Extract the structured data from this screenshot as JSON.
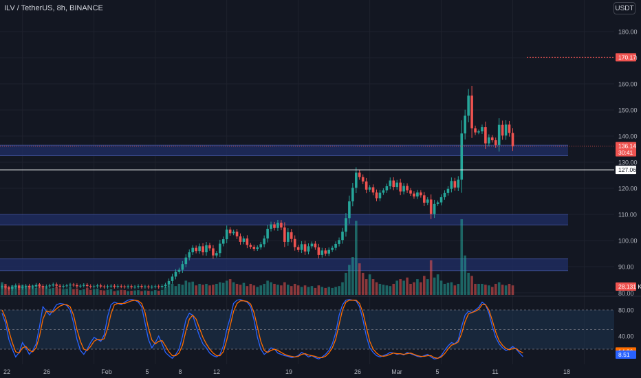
{
  "header": {
    "title": "ILV / TetherUS, 8h, BINANCE",
    "currency": "USDT"
  },
  "colors": {
    "background": "#131722",
    "up": "#26a69a",
    "down": "#ef5350",
    "zone": "#1e2c5e",
    "stoch_k": "#2962ff",
    "stoch_d": "#ff6d00",
    "band": "#1d3450"
  },
  "chart_data": [
    {
      "type": "candlestick",
      "ylim": [
        80,
        190
      ],
      "y_ticks": [
        80,
        90,
        100,
        110,
        120,
        130,
        140,
        150,
        160,
        170,
        180
      ],
      "x_tick_labels": [
        "22",
        "26",
        "Feb",
        "5",
        "8",
        "12",
        "19",
        "26",
        "Mar",
        "5",
        "11",
        "18"
      ],
      "x_tick_positions": [
        0,
        7,
        13,
        20,
        27,
        34,
        41,
        48,
        55,
        62,
        69,
        76
      ],
      "zones": [
        [
          132.5,
          136.5
        ],
        [
          106,
          110
        ],
        [
          88.5,
          93
        ]
      ],
      "price_lines": {
        "current": {
          "value": 136.14,
          "label": "136.14",
          "countdown": "30:41"
        },
        "horizontal": {
          "value": 127.06,
          "label": "127.06"
        },
        "alert": {
          "value": 170.17,
          "label": "170.17"
        }
      },
      "closes": [
        82.5,
        82,
        81.6,
        82.2,
        82.8,
        81.9,
        82.3,
        82.7,
        82.1,
        82.4,
        83,
        82.6,
        82.2,
        82.5,
        82.8,
        83.2,
        82.7,
        82.3,
        82.6,
        82.8,
        83.1,
        82.9,
        82.5,
        82.7,
        83,
        82.6,
        82.3,
        82.5,
        82.8,
        82.4,
        82.2,
        82.5,
        82.7,
        82.3,
        82.6,
        82.4,
        82.2,
        82.5,
        82.1,
        82.3,
        82.6,
        82.2,
        82.4,
        82.1,
        82.3,
        82.5,
        82.2,
        82.6,
        83.1,
        84.5,
        86.2,
        88,
        88.8,
        91,
        93.5,
        95.5,
        97.2,
        96,
        97.8,
        95.5,
        98.2,
        97,
        94.3,
        95.2,
        98.8,
        100.5,
        104.2,
        102.8,
        103.4,
        101.6,
        99.5,
        100.8,
        98.3,
        97.6,
        96.8,
        97.4,
        98.6,
        100.8,
        104.5,
        106.2,
        104.8,
        106.8,
        105,
        99.5,
        103.2,
        100.6,
        97.5,
        96.4,
        98.6,
        95.8,
        97.8,
        98.8,
        97.4,
        94.5,
        96.2,
        95,
        96.4,
        97.2,
        98.7,
        100.2,
        103.4,
        108.6,
        115,
        120.2,
        126,
        124.3,
        122.6,
        119.5,
        120.4,
        118.4,
        116.2,
        118.3,
        119.2,
        120.8,
        123,
        120.5,
        122.2,
        118.8,
        120.9,
        119.2,
        118,
        116.9,
        118.4,
        117.3,
        114.5,
        115.7,
        110.2,
        114,
        114.6,
        116.6,
        118.2,
        119.8,
        122.8,
        120.3,
        123.3,
        141,
        147.8,
        155.5,
        143,
        141.4,
        141.8,
        143.4,
        137.2,
        139.5,
        138.4,
        136.6,
        144.3,
        140.2,
        144.4,
        141.2,
        136.14
      ],
      "volumes": [
        4,
        3.5,
        2.5,
        3,
        2.8,
        2.5,
        3.2,
        2.5,
        2.8,
        3,
        2.2,
        3.5,
        2.8,
        2.4,
        2,
        2.2,
        2.6,
        2,
        1.8,
        2,
        2.5,
        1.8,
        2,
        1.5,
        1.8,
        2.2,
        1.6,
        1.8,
        2,
        1.5,
        1.4,
        1.6,
        1.8,
        1.2,
        1.4,
        1.6,
        1.5,
        1.2,
        1.3,
        1.4,
        1.5,
        1.2,
        1.4,
        1.3,
        1.2,
        1.5,
        1.3,
        1.6,
        2.5,
        3,
        3.5,
        2.8,
        3.5,
        3.2,
        4.5,
        4,
        4.2,
        3,
        3.5,
        3.2,
        3.5,
        3,
        3.2,
        3.5,
        4,
        3.8,
        4.5,
        5,
        4,
        3.5,
        3.2,
        3.8,
        2.8,
        3.5,
        3,
        2.5,
        3,
        3.5,
        4.5,
        4,
        3.5,
        3.2,
        3,
        4,
        3.2,
        2.8,
        3.5,
        3,
        2.5,
        3,
        2.5,
        2.8,
        2.2,
        3,
        2.5,
        2.2,
        2.5,
        2.2,
        2.5,
        2.8,
        4,
        7,
        9.5,
        12,
        23.5,
        10,
        7,
        5,
        6.5,
        5,
        4,
        3.5,
        3.2,
        3,
        2.8,
        3.5,
        4.5,
        5,
        4.5,
        5.5,
        3.5,
        4,
        5,
        4,
        6,
        5,
        11,
        5.5,
        6.5,
        4.5,
        3.5,
        3.8,
        4,
        3,
        3.5,
        24,
        12.5,
        7,
        6,
        3.5,
        3.5,
        3.5,
        3.2,
        3,
        2.5,
        3.5,
        4,
        3.2,
        3,
        3.5,
        3
      ],
      "volume_label": "28.131 K"
    },
    {
      "type": "line",
      "ylim": [
        0,
        100
      ],
      "bands": [
        20,
        50,
        80
      ],
      "y_ticks": [
        80,
        40
      ],
      "k_label": "8.51",
      "d_label": "14.36",
      "series": [
        {
          "values": [
            75,
            60,
            35,
            20,
            8,
            15,
            30,
            22,
            12,
            18,
            28,
            55,
            85,
            78,
            72,
            80,
            88,
            90,
            89,
            87,
            80,
            60,
            35,
            18,
            12,
            20,
            30,
            38,
            35,
            32,
            42,
            70,
            88,
            92,
            90,
            88,
            92,
            95,
            96,
            95,
            92,
            85,
            60,
            35,
            22,
            30,
            40,
            28,
            15,
            10,
            6,
            12,
            20,
            40,
            65,
            75,
            72,
            55,
            40,
            28,
            22,
            14,
            10,
            8,
            12,
            25,
            50,
            68,
            90,
            95,
            96,
            94,
            92,
            85,
            65,
            38,
            20,
            12,
            16,
            22,
            20,
            14,
            12,
            10,
            9,
            7,
            8,
            10,
            15,
            12,
            8,
            10,
            7,
            5,
            8,
            12,
            18,
            28,
            45,
            72,
            88,
            95,
            96,
            95,
            94,
            85,
            65,
            40,
            22,
            15,
            10,
            8,
            10,
            12,
            15,
            14,
            12,
            13,
            11,
            15,
            13,
            11,
            9,
            8,
            10,
            12,
            8,
            5,
            6,
            10,
            18,
            25,
            30,
            28,
            34,
            55,
            72,
            78,
            76,
            80,
            84,
            92,
            88,
            75,
            55,
            38,
            28,
            22,
            18,
            20,
            24,
            20,
            14,
            8.51
          ]
        },
        {
          "values": [
            80,
            68,
            48,
            30,
            16,
            14,
            22,
            24,
            18,
            16,
            22,
            40,
            66,
            78,
            77,
            77,
            82,
            86,
            88,
            88,
            85,
            72,
            50,
            32,
            20,
            18,
            24,
            32,
            35,
            34,
            36,
            52,
            74,
            88,
            90,
            90,
            90,
            92,
            94,
            95,
            94,
            90,
            76,
            52,
            34,
            28,
            32,
            33,
            25,
            16,
            10,
            10,
            14,
            26,
            48,
            66,
            72,
            66,
            52,
            38,
            28,
            20,
            14,
            10,
            10,
            16,
            34,
            56,
            78,
            90,
            94,
            94,
            93,
            89,
            76,
            54,
            32,
            18,
            15,
            18,
            20,
            18,
            15,
            12,
            10,
            9,
            8,
            9,
            12,
            13,
            11,
            10,
            9,
            7,
            7,
            9,
            14,
            22,
            35,
            58,
            80,
            92,
            95,
            95,
            95,
            90,
            76,
            54,
            32,
            20,
            14,
            10,
            9,
            10,
            12,
            14,
            13,
            13,
            12,
            13,
            14,
            12,
            10,
            9,
            9,
            10,
            10,
            7,
            6,
            8,
            13,
            20,
            26,
            28,
            31,
            44,
            62,
            74,
            76,
            78,
            81,
            88,
            88,
            80,
            64,
            46,
            33,
            26,
            21,
            19,
            21,
            21,
            17,
            14.36
          ]
        }
      ]
    }
  ]
}
